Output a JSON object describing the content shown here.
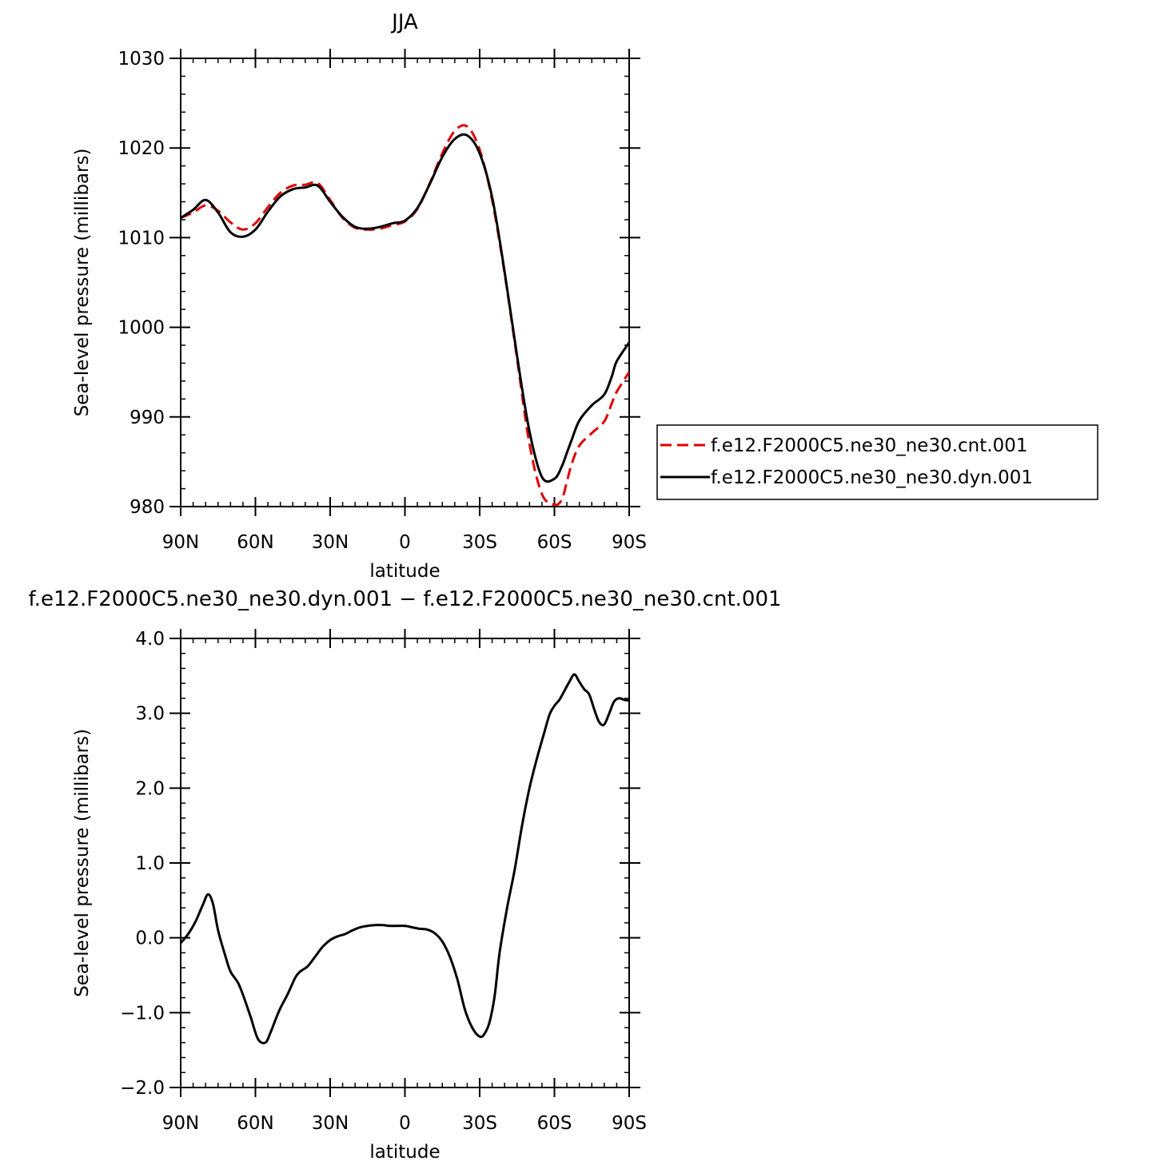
{
  "chart_data": [
    {
      "type": "line",
      "title": "JJA",
      "xlabel": "latitude",
      "ylabel": "Sea-level pressure (millibars)",
      "xlim": [
        90,
        -90
      ],
      "ylim": [
        980,
        1030
      ],
      "x_ticks": [
        90,
        60,
        30,
        0,
        -30,
        -60,
        -90
      ],
      "x_tick_labels": [
        "90N",
        "60N",
        "30N",
        "0",
        "30S",
        "60S",
        "90S"
      ],
      "y_ticks": [
        980,
        990,
        1000,
        1010,
        1020,
        1030
      ],
      "y_tick_labels": [
        "980",
        "990",
        "1000",
        "1010",
        "1020",
        "1030"
      ],
      "grid": false,
      "legend_position": "right",
      "series": [
        {
          "name": "f.e12.F2000C5.ne30_ne30.cnt.001",
          "color": "#e00000",
          "style": "dashed",
          "x": [
            90,
            85,
            80,
            75,
            70,
            65,
            60,
            55,
            50,
            45,
            40,
            35,
            30,
            25,
            20,
            15,
            10,
            5,
            0,
            -5,
            -10,
            -15,
            -20,
            -25,
            -30,
            -35,
            -40,
            -45,
            -50,
            -55,
            -60,
            -63,
            -65,
            -67,
            -70,
            -75,
            -80,
            -83,
            -85,
            -90
          ],
          "y": [
            1012.2,
            1012.8,
            1013.6,
            1013.0,
            1011.7,
            1010.9,
            1011.6,
            1013.4,
            1015.0,
            1015.8,
            1015.9,
            1016.1,
            1014.2,
            1012.2,
            1011.1,
            1010.9,
            1011.0,
            1011.4,
            1011.8,
            1013.2,
            1016.1,
            1019.4,
            1021.9,
            1022.4,
            1019.8,
            1014.2,
            1006.0,
            996.5,
            987.0,
            981.4,
            980.2,
            980.8,
            982.8,
            984.8,
            986.8,
            988.2,
            989.5,
            991.5,
            992.8,
            995.0
          ]
        },
        {
          "name": "f.e12.F2000C5.ne30_ne30.dyn.001",
          "color": "#000000",
          "style": "solid",
          "x": [
            90,
            85,
            80,
            75,
            70,
            65,
            60,
            55,
            50,
            45,
            40,
            35,
            30,
            25,
            20,
            15,
            10,
            5,
            0,
            -5,
            -10,
            -15,
            -20,
            -25,
            -30,
            -35,
            -40,
            -45,
            -50,
            -55,
            -60,
            -63,
            -65,
            -67,
            -70,
            -75,
            -80,
            -83,
            -85,
            -90
          ],
          "y": [
            1012.2,
            1013.1,
            1014.2,
            1012.8,
            1010.6,
            1010.1,
            1010.9,
            1012.9,
            1014.6,
            1015.4,
            1015.6,
            1015.8,
            1014.0,
            1012.3,
            1011.2,
            1011.0,
            1011.2,
            1011.6,
            1011.9,
            1013.3,
            1016.0,
            1019.0,
            1021.0,
            1021.4,
            1019.4,
            1014.5,
            1006.2,
            996.8,
            988.4,
            983.3,
            983.1,
            984.5,
            986.0,
            987.5,
            989.6,
            991.3,
            992.5,
            994.5,
            996.2,
            998.3
          ]
        }
      ]
    },
    {
      "type": "line",
      "title": "f.e12.F2000C5.ne30_ne30.dyn.001 - f.e12.F2000C5.ne30_ne30.cnt.001",
      "xlabel": "latitude",
      "ylabel": "Sea-level pressure (millibars)",
      "xlim": [
        90,
        -90
      ],
      "ylim": [
        -2.0,
        4.0
      ],
      "x_ticks": [
        90,
        60,
        30,
        0,
        -30,
        -60,
        -90
      ],
      "x_tick_labels": [
        "90N",
        "60N",
        "30N",
        "0",
        "30S",
        "60S",
        "90S"
      ],
      "y_ticks": [
        -2.0,
        -1.0,
        0.0,
        1.0,
        2.0,
        3.0,
        4.0
      ],
      "y_tick_labels": [
        "-2.0",
        "-1.0",
        "0.0",
        "1.0",
        "2.0",
        "3.0",
        "4.0"
      ],
      "grid": false,
      "series": [
        {
          "color": "#000000",
          "style": "solid",
          "x": [
            90,
            87,
            84,
            81,
            79,
            77,
            75,
            72,
            70,
            67,
            65,
            62,
            59,
            56,
            54,
            52,
            50,
            47,
            44,
            42,
            39,
            36,
            33,
            30,
            27,
            24,
            21,
            18,
            15,
            12,
            9,
            6,
            3,
            0,
            -3,
            -6,
            -9,
            -12,
            -15,
            -18,
            -21,
            -24,
            -27,
            -30,
            -32,
            -34,
            -36,
            -38,
            -41,
            -44,
            -47,
            -50,
            -53,
            -56,
            -58,
            -60,
            -62,
            -64,
            -66,
            -68,
            -70,
            -72,
            -74,
            -76,
            -78,
            -80,
            -82,
            -84,
            -86,
            -88,
            -90
          ],
          "y": [
            -0.07,
            0.05,
            0.22,
            0.45,
            0.58,
            0.45,
            0.1,
            -0.25,
            -0.45,
            -0.6,
            -0.76,
            -1.05,
            -1.35,
            -1.4,
            -1.27,
            -1.1,
            -0.94,
            -0.75,
            -0.53,
            -0.45,
            -0.38,
            -0.25,
            -0.12,
            -0.03,
            0.02,
            0.05,
            0.1,
            0.14,
            0.16,
            0.17,
            0.17,
            0.16,
            0.16,
            0.16,
            0.14,
            0.12,
            0.11,
            0.06,
            -0.05,
            -0.25,
            -0.55,
            -0.95,
            -1.2,
            -1.32,
            -1.28,
            -1.12,
            -0.78,
            -0.2,
            0.4,
            0.9,
            1.5,
            2.0,
            2.4,
            2.75,
            2.98,
            3.1,
            3.18,
            3.3,
            3.42,
            3.52,
            3.42,
            3.32,
            3.25,
            3.05,
            2.88,
            2.85,
            3.0,
            3.16,
            3.2,
            3.18,
            3.17
          ]
        }
      ]
    }
  ]
}
